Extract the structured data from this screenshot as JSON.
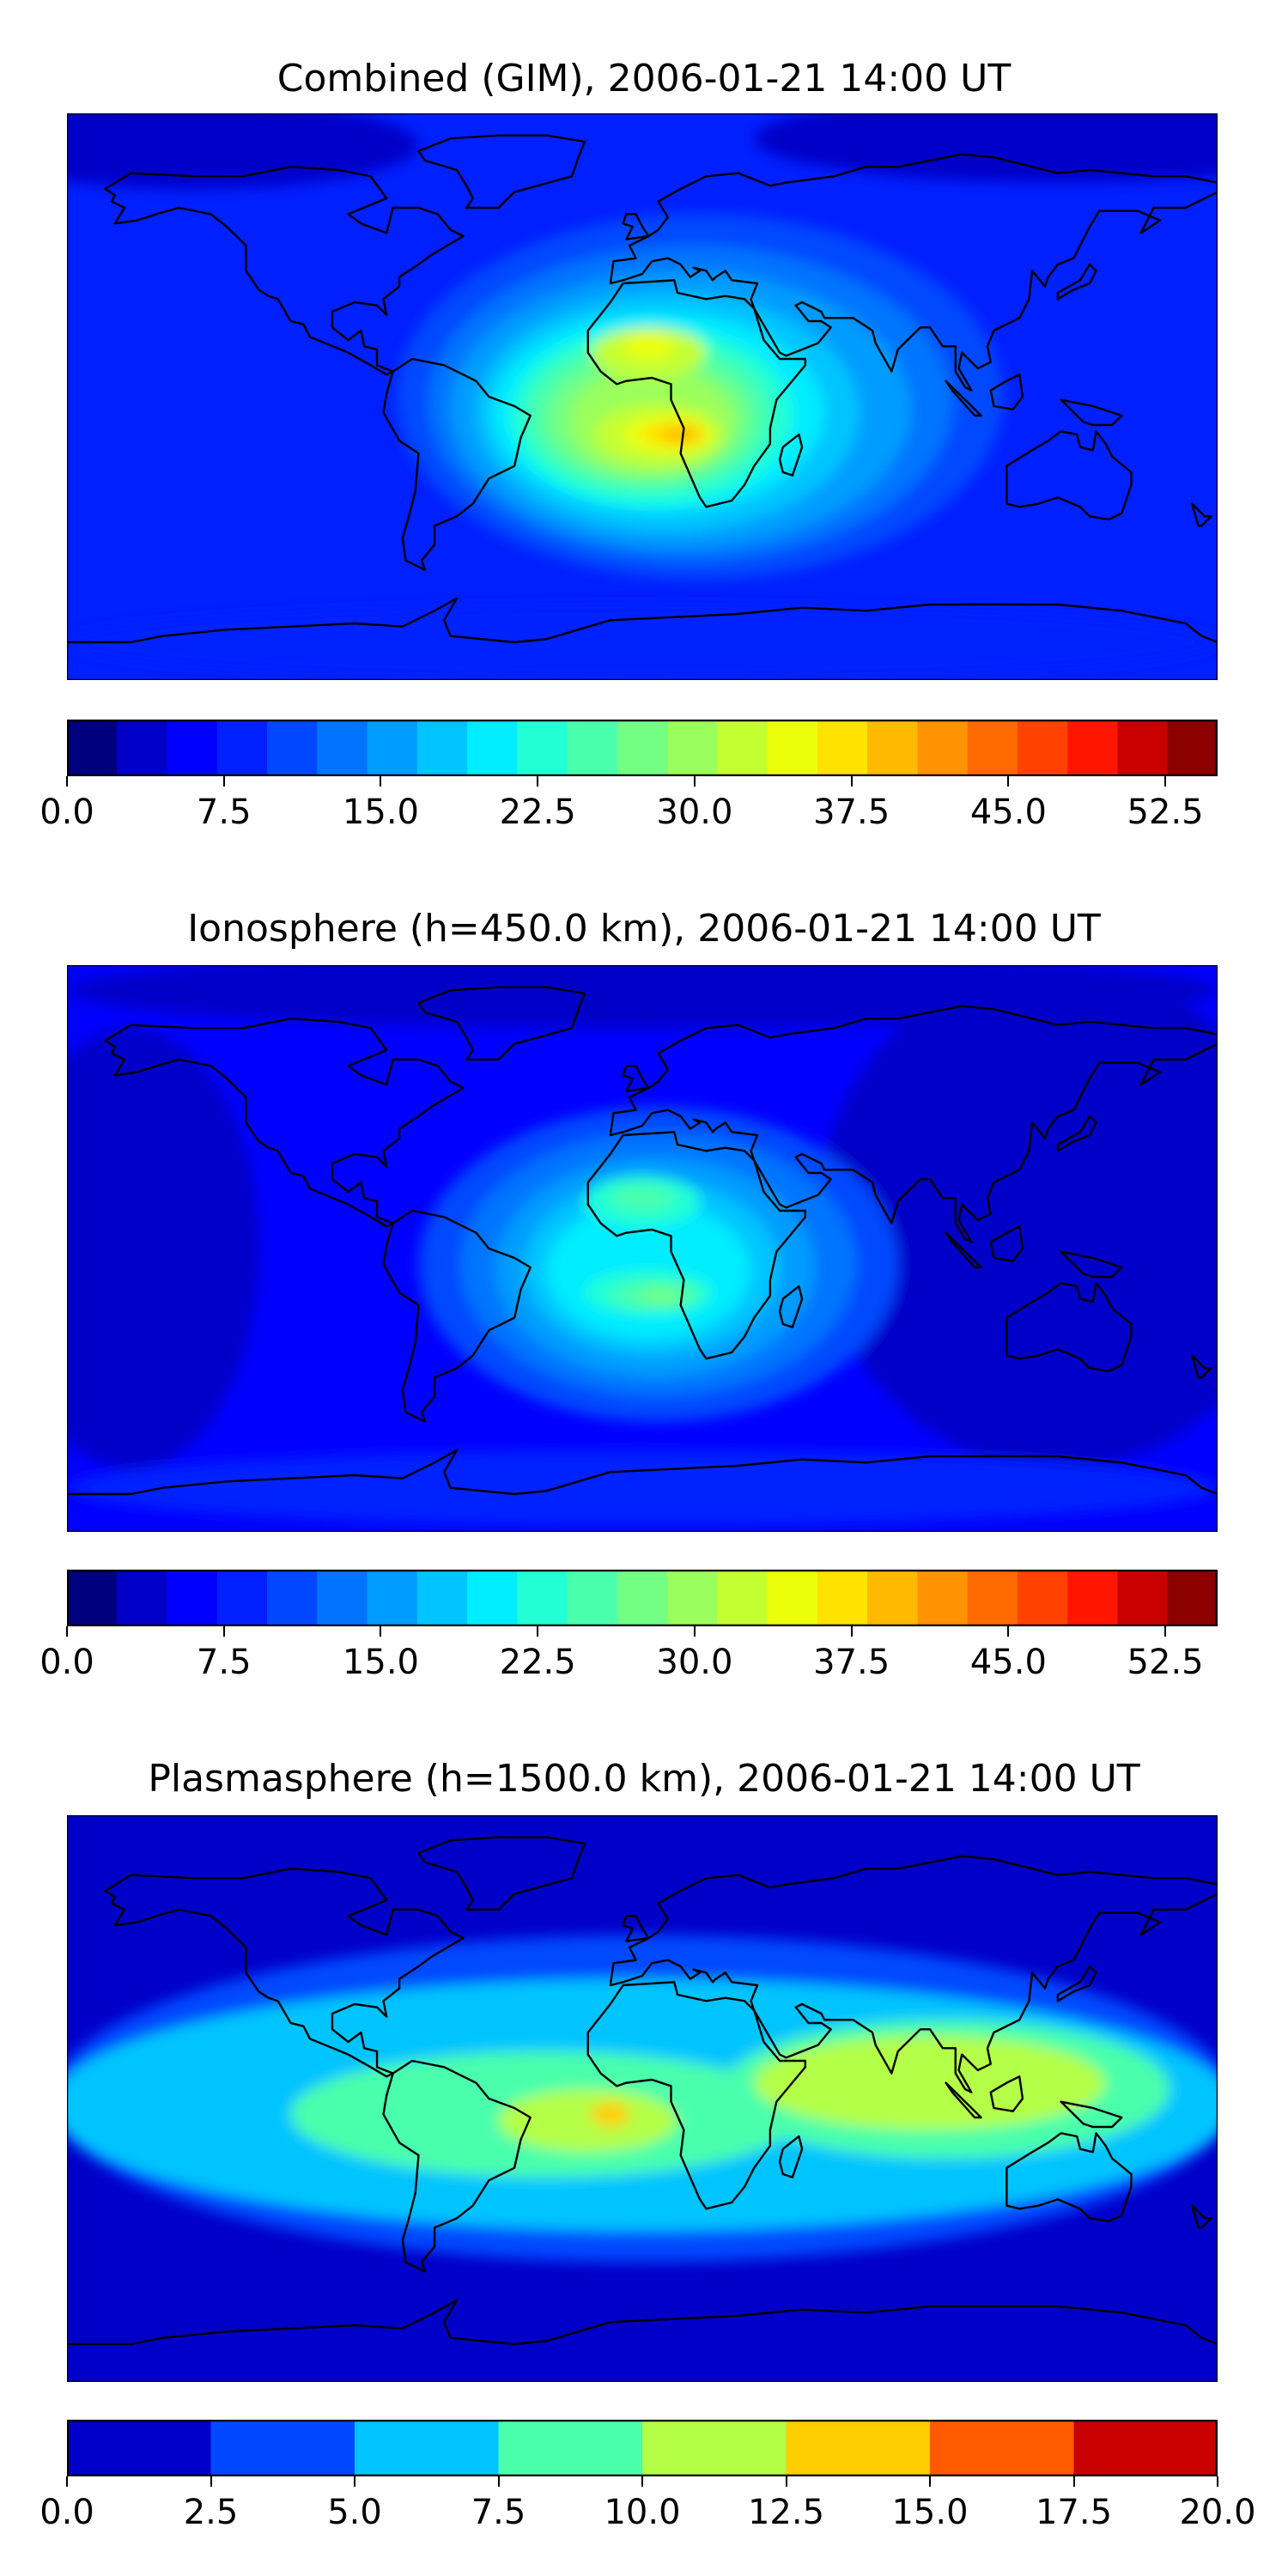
{
  "panels": [
    {
      "id": "combined",
      "title": "Combined (GIM), 2006-01-21 14:00 UT",
      "colorbar": {
        "min": 0.0,
        "max": 55.0,
        "colors": [
          "#00007f",
          "#0000c8",
          "#0000ff",
          "#0020ff",
          "#0048ff",
          "#0074ff",
          "#009cff",
          "#00c4ff",
          "#00ecff",
          "#22ffd4",
          "#4affac",
          "#72ff84",
          "#9aff5c",
          "#c4ff32",
          "#ecff0a",
          "#ffe200",
          "#ffba00",
          "#ff9200",
          "#ff6a00",
          "#ff4200",
          "#ff1600",
          "#c80000",
          "#8c0000"
        ],
        "tick_labels": [
          "0.0",
          "7.5",
          "15.0",
          "22.5",
          "30.0",
          "37.5",
          "45.0",
          "52.5"
        ],
        "tick_values": [
          0.0,
          7.5,
          15.0,
          22.5,
          30.0,
          37.5,
          45.0,
          52.5
        ]
      },
      "map": {
        "background": "#0020ff",
        "blobs": [
          {
            "region": "polar-north-east",
            "lon": 130,
            "lat": 82,
            "rlon": 95,
            "rlat": 14,
            "color": "#0000c8"
          },
          {
            "region": "polar-north-west",
            "lon": -140,
            "lat": 80,
            "rlon": 70,
            "rlat": 14,
            "color": "#0000c8"
          },
          {
            "region": "south-band",
            "lon": 0,
            "lat": -78,
            "rlon": 180,
            "rlat": 12,
            "color": "#0020ff"
          },
          {
            "region": "dayside-outer",
            "lon": 18,
            "lat": 0,
            "rlon": 95,
            "rlat": 58,
            "color": "#0048ff"
          },
          {
            "region": "dayside-2",
            "lon": 15,
            "lat": -2,
            "rlon": 82,
            "rlat": 50,
            "color": "#0074ff"
          },
          {
            "region": "dayside-3",
            "lon": 12,
            "lat": -4,
            "rlon": 72,
            "rlat": 44,
            "color": "#009cff"
          },
          {
            "region": "dayside-4",
            "lon": 8,
            "lat": -5,
            "rlon": 60,
            "rlat": 38,
            "color": "#00c4ff"
          },
          {
            "region": "dayside-5",
            "lon": 5,
            "lat": -5,
            "rlon": 52,
            "rlat": 32,
            "color": "#00ecff"
          },
          {
            "region": "dayside-6",
            "lon": 3,
            "lat": -6,
            "rlon": 44,
            "rlat": 28,
            "color": "#22ffd4"
          },
          {
            "region": "dayside-7",
            "lon": 2,
            "lat": -6,
            "rlon": 38,
            "rlat": 24,
            "color": "#4affac"
          },
          {
            "region": "dayside-8",
            "lon": 2,
            "lat": -7,
            "rlon": 32,
            "rlat": 20,
            "color": "#72ff84"
          },
          {
            "region": "dayside-9",
            "lon": 3,
            "lat": -8,
            "rlon": 26,
            "rlat": 17,
            "color": "#9aff5c"
          },
          {
            "region": "dayside-10",
            "lon": 5,
            "lat": -12,
            "rlon": 20,
            "rlat": 10,
            "color": "#c4ff32"
          },
          {
            "region": "north-crest",
            "lon": 2,
            "lat": 14,
            "rlon": 18,
            "rlat": 8,
            "color": "#c4ff32"
          },
          {
            "region": "north-crest-core",
            "lon": 2,
            "lat": 16,
            "rlon": 8,
            "rlat": 4,
            "color": "#ecff0a"
          },
          {
            "region": "south-crest",
            "lon": 8,
            "lat": -12,
            "rlon": 14,
            "rlat": 6,
            "color": "#ecff0a"
          },
          {
            "region": "south-crest-2",
            "lon": 10,
            "lat": -12,
            "rlon": 10,
            "rlat": 4,
            "color": "#ffe200"
          },
          {
            "region": "south-crest-core",
            "lon": 12,
            "lat": -12,
            "rlon": 6,
            "rlat": 2.5,
            "color": "#ffba00"
          }
        ]
      }
    },
    {
      "id": "ionosphere",
      "title": "Ionosphere  (h=450.0 km), 2006-01-21 14:00 UT",
      "colorbar": {
        "min": 0.0,
        "max": 55.0,
        "colors": [
          "#00007f",
          "#0000c8",
          "#0000ff",
          "#0020ff",
          "#0048ff",
          "#0074ff",
          "#009cff",
          "#00c4ff",
          "#00ecff",
          "#22ffd4",
          "#4affac",
          "#72ff84",
          "#9aff5c",
          "#c4ff32",
          "#ecff0a",
          "#ffe200",
          "#ffba00",
          "#ff9200",
          "#ff6a00",
          "#ff4200",
          "#ff1600",
          "#c80000",
          "#8c0000"
        ],
        "tick_labels": [
          "0.0",
          "7.5",
          "15.0",
          "22.5",
          "30.0",
          "37.5",
          "45.0",
          "52.5"
        ],
        "tick_values": [
          0.0,
          7.5,
          15.0,
          22.5,
          30.0,
          37.5,
          45.0,
          52.5
        ]
      },
      "map": {
        "background": "#0000ff",
        "blobs": [
          {
            "region": "dark-east",
            "lon": 130,
            "lat": 10,
            "rlon": 75,
            "rlat": 80,
            "color": "#0000c8"
          },
          {
            "region": "dark-west",
            "lon": -160,
            "lat": 0,
            "rlon": 40,
            "rlat": 70,
            "color": "#0000c8"
          },
          {
            "region": "dark-north",
            "lon": 0,
            "lat": 82,
            "rlon": 180,
            "rlat": 12,
            "color": "#0000c8"
          },
          {
            "region": "south-band",
            "lon": 0,
            "lat": -76,
            "rlon": 180,
            "rlat": 12,
            "color": "#0020ff"
          },
          {
            "region": "dayside-outer",
            "lon": 5,
            "lat": -5,
            "rlon": 75,
            "rlat": 50,
            "color": "#0048ff"
          },
          {
            "region": "dayside-2",
            "lon": 5,
            "lat": -5,
            "rlon": 62,
            "rlat": 42,
            "color": "#0074ff"
          },
          {
            "region": "dayside-3",
            "lon": 4,
            "lat": -6,
            "rlon": 50,
            "rlat": 35,
            "color": "#009cff"
          },
          {
            "region": "dayside-4",
            "lon": 3,
            "lat": -6,
            "rlon": 40,
            "rlat": 28,
            "color": "#00c4ff"
          },
          {
            "region": "dayside-5",
            "lon": 2,
            "lat": -7,
            "rlon": 32,
            "rlat": 22,
            "color": "#00ecff"
          },
          {
            "region": "north-crest",
            "lon": 0,
            "lat": 15,
            "rlon": 18,
            "rlat": 8,
            "color": "#22ffd4"
          },
          {
            "region": "north-crest-core",
            "lon": 0,
            "lat": 16,
            "rlon": 10,
            "rlat": 4,
            "color": "#4affac"
          },
          {
            "region": "south-crest",
            "lon": 2,
            "lat": -14,
            "rlon": 20,
            "rlat": 7,
            "color": "#22ffd4"
          },
          {
            "region": "south-crest-2",
            "lon": 4,
            "lat": -15,
            "rlon": 14,
            "rlat": 4.5,
            "color": "#4affac"
          },
          {
            "region": "south-crest-core",
            "lon": 6,
            "lat": -15,
            "rlon": 7,
            "rlat": 2.5,
            "color": "#72ff84"
          }
        ]
      }
    },
    {
      "id": "plasmasphere",
      "title": "Plasmasphere (h=1500.0 km), 2006-01-21 14:00 UT",
      "colorbar": {
        "min": 0.0,
        "max": 20.0,
        "colors": [
          "#0000c8",
          "#0048ff",
          "#00c4ff",
          "#4affac",
          "#b4ff46",
          "#ffce00",
          "#ff5a00",
          "#c80000"
        ],
        "tick_labels": [
          "0.0",
          "2.5",
          "5.0",
          "7.5",
          "10.0",
          "12.5",
          "15.0",
          "17.5",
          "20.0"
        ],
        "tick_values": [
          0.0,
          2.5,
          5.0,
          7.5,
          10.0,
          12.5,
          15.0,
          17.5,
          20.0
        ]
      },
      "map": {
        "background": "#0000c8",
        "blobs": [
          {
            "region": "mid-band",
            "lon": 0,
            "lat": 0,
            "rlon": 185,
            "rlat": 52,
            "color": "#0048ff"
          },
          {
            "region": "inner-band",
            "lon": 0,
            "lat": -2,
            "rlon": 185,
            "rlat": 40,
            "color": "#00c4ff"
          },
          {
            "region": "green-west",
            "lon": -30,
            "lat": -5,
            "rlon": 80,
            "rlat": 20,
            "color": "#4affac"
          },
          {
            "region": "green-east",
            "lon": 95,
            "lat": 3,
            "rlon": 70,
            "rlat": 22,
            "color": "#4affac"
          },
          {
            "region": "yellow-east",
            "lon": 90,
            "lat": 5,
            "rlon": 55,
            "rlat": 15,
            "color": "#b4ff46"
          },
          {
            "region": "yellow-west",
            "lon": -17,
            "lat": -7,
            "rlon": 28,
            "rlat": 10,
            "color": "#b4ff46"
          },
          {
            "region": "orange-core",
            "lon": -10,
            "lat": -5,
            "rlon": 6,
            "rlat": 4,
            "color": "#ffce00"
          }
        ]
      }
    }
  ]
}
